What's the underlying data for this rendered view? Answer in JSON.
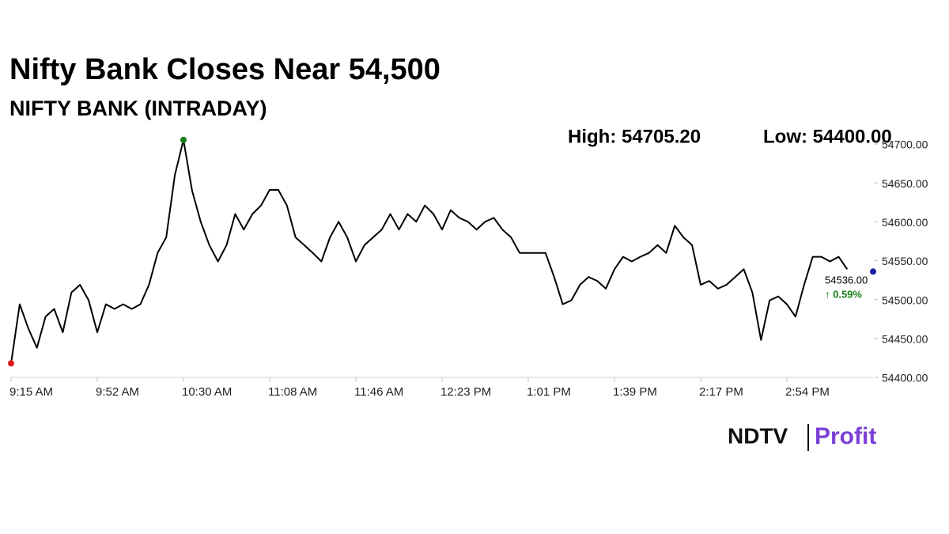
{
  "chart_data": {
    "type": "line",
    "title": "Nifty Bank Closes Near 54,500",
    "subtitle": "NIFTY BANK (INTRADAY)",
    "high_label": "High: 54705.20",
    "low_label": "Low: 54400.00",
    "last_value_label": "54536.00",
    "change_label": "↑ 0.59%",
    "change_color": "#1a7f1a",
    "high_color": "#1a7f1a",
    "low_color": "#e01b1b",
    "last_color": "#1a22a8",
    "logo": {
      "left": "NDTV",
      "right": "Profit"
    },
    "categories": [
      "9:15 AM",
      null,
      null,
      null,
      null,
      null,
      null,
      null,
      null,
      null,
      "9:52 AM",
      null,
      null,
      null,
      null,
      null,
      null,
      null,
      null,
      null,
      "10:30 AM",
      null,
      null,
      null,
      null,
      null,
      null,
      null,
      null,
      null,
      "11:08 AM",
      null,
      null,
      null,
      null,
      null,
      null,
      null,
      null,
      null,
      "11:46 AM",
      null,
      null,
      null,
      null,
      null,
      null,
      null,
      null,
      null,
      "12:23 PM",
      null,
      null,
      null,
      null,
      null,
      null,
      null,
      null,
      null,
      "1:01 PM",
      null,
      null,
      null,
      null,
      null,
      null,
      null,
      null,
      null,
      "1:39 PM",
      null,
      null,
      null,
      null,
      null,
      null,
      null,
      null,
      null,
      "2:17 PM",
      null,
      null,
      null,
      null,
      null,
      null,
      null,
      null,
      null,
      "2:54 PM",
      null,
      null,
      null,
      null,
      null,
      null,
      null,
      null,
      null,
      null
    ],
    "series": [
      {
        "name": "NIFTY BANK",
        "color": "#000000",
        "values": [
          54418,
          54494,
          54463,
          54438,
          54478,
          54488,
          54458,
          54509,
          54519,
          54499,
          54458,
          54494,
          54488,
          54494,
          54488,
          54494,
          54519,
          54560,
          54580,
          54660,
          54705.2,
          54640,
          54600,
          54570,
          54549,
          54570,
          54610,
          54590,
          54610,
          54621,
          54641,
          54641,
          54621,
          54580,
          54570,
          54560,
          54549,
          54580,
          54600,
          54580,
          54549,
          54570,
          54580,
          54590,
          54610,
          54590,
          54610,
          54600,
          54621,
          54610,
          54590,
          54615,
          54605,
          54600,
          54590,
          54600,
          54605,
          54590,
          54580,
          54560,
          54560,
          54560,
          54560,
          54529,
          54494,
          54499,
          54519,
          54529,
          54524,
          54514,
          54539,
          54555,
          54549,
          54555,
          54560,
          54570,
          54560,
          54595,
          54580,
          54570,
          54519,
          54524,
          54514,
          54519,
          54529,
          54539,
          54509,
          54448,
          54499,
          54504,
          54494,
          54478,
          54519,
          54555,
          54555,
          54549,
          54555,
          54539,
          null,
          null,
          54536
        ]
      }
    ],
    "ylim": [
      54400,
      54700
    ],
    "yticks": [
      {
        "value": 54400,
        "label": "54400.00"
      },
      {
        "value": 54450,
        "label": "54450.00"
      },
      {
        "value": 54500,
        "label": "54500.00"
      },
      {
        "value": 54550,
        "label": "54550.00"
      },
      {
        "value": 54600,
        "label": "54600.00"
      },
      {
        "value": 54650,
        "label": "54650.00"
      },
      {
        "value": 54700,
        "label": "54700.00"
      }
    ]
  }
}
